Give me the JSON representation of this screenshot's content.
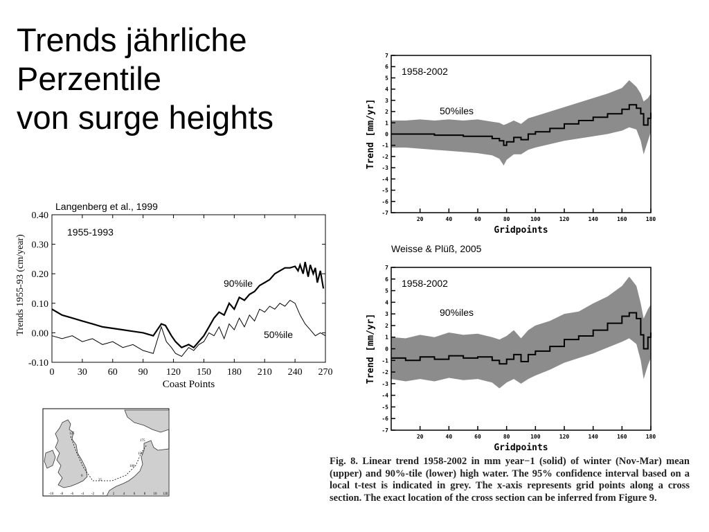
{
  "title": {
    "line1": "Trends jährliche",
    "line2": "Perzentile",
    "line3": "von surge heights"
  },
  "labels": {
    "langenberg": "Langenberg et al., 1999",
    "weisse": "Weisse & Plüß, 2005"
  },
  "caption": {
    "text": "Fig. 8. Linear trend 1958-2002 in mm year−1 (solid) of winter (Nov-Mar) mean (upper) and 90%-tile (lower) high water. The 95% confidence interval based on a local t-test is indicated in grey. The x-axis represents grid points along a cross section. The exact location of the cross section can be inferred from Figure 9."
  },
  "map": {
    "land_color": "#cfcfcf",
    "sea_color": "#ffffff",
    "tick_labels": [
      "-10",
      "-8",
      "-6",
      "-4",
      "-2",
      "0",
      "2",
      "4",
      "6",
      "8",
      "10",
      "12E"
    ],
    "point_labels": [
      "125",
      "175",
      "150",
      "100",
      "25",
      "0"
    ]
  },
  "chart_data": [
    {
      "type": "line",
      "title": "",
      "period_label": "1955-1993",
      "xlabel": "Coast Points",
      "ylabel": "Trends 1955-93 (cm/year)",
      "xlim": [
        0,
        270
      ],
      "ylim": [
        -0.1,
        0.4
      ],
      "xticks": [
        "0",
        "30",
        "60",
        "90",
        "120",
        "150",
        "180",
        "210",
        "240",
        "270"
      ],
      "yticks": [
        "-0.10",
        "0.00",
        "0.10",
        "0.20",
        "0.30",
        "0.40"
      ],
      "grid": false,
      "series": [
        {
          "name": "90%ile",
          "color": "#000000",
          "x": [
            0,
            10,
            20,
            30,
            40,
            50,
            60,
            70,
            80,
            90,
            100,
            108,
            112,
            118,
            122,
            128,
            135,
            140,
            145,
            150,
            155,
            160,
            165,
            170,
            175,
            180,
            185,
            190,
            195,
            200,
            205,
            210,
            215,
            220,
            225,
            230,
            235,
            240,
            243,
            245,
            248,
            250,
            253,
            255,
            258,
            260,
            262,
            265,
            268
          ],
          "y": [
            0.08,
            0.06,
            0.05,
            0.04,
            0.03,
            0.02,
            0.015,
            0.01,
            0.005,
            0.0,
            -0.01,
            0.03,
            0.025,
            -0.01,
            -0.03,
            -0.05,
            -0.04,
            -0.05,
            -0.03,
            -0.01,
            0.02,
            0.05,
            0.07,
            0.06,
            0.1,
            0.08,
            0.12,
            0.11,
            0.13,
            0.14,
            0.16,
            0.17,
            0.18,
            0.2,
            0.21,
            0.22,
            0.22,
            0.225,
            0.21,
            0.23,
            0.2,
            0.24,
            0.19,
            0.23,
            0.2,
            0.22,
            0.17,
            0.21,
            0.15
          ]
        },
        {
          "name": "50%ile",
          "color": "#000000",
          "x": [
            0,
            10,
            20,
            30,
            40,
            50,
            60,
            70,
            80,
            90,
            100,
            108,
            113,
            118,
            122,
            128,
            135,
            140,
            145,
            150,
            155,
            160,
            165,
            170,
            175,
            180,
            185,
            190,
            195,
            200,
            205,
            210,
            215,
            220,
            225,
            230,
            235,
            240,
            245,
            250,
            255,
            260,
            265,
            270
          ],
          "y": [
            -0.01,
            -0.02,
            -0.01,
            -0.03,
            -0.02,
            -0.04,
            -0.03,
            -0.05,
            -0.04,
            -0.06,
            -0.07,
            0.02,
            -0.03,
            -0.05,
            -0.07,
            -0.08,
            -0.05,
            -0.06,
            -0.04,
            -0.03,
            0.0,
            -0.01,
            0.02,
            -0.02,
            0.03,
            0.01,
            0.05,
            0.02,
            0.06,
            0.04,
            0.08,
            0.07,
            0.09,
            0.08,
            0.1,
            0.09,
            0.11,
            0.1,
            0.06,
            0.03,
            0.01,
            -0.01,
            0.0,
            -0.01
          ]
        }
      ]
    },
    {
      "type": "area",
      "title": "",
      "period_label": "1958-2002",
      "series_label": "50%iles",
      "xlabel": "Gridpoints",
      "ylabel": "Trend [mm/yr]",
      "xlim": [
        0,
        180
      ],
      "ylim": [
        -7,
        7
      ],
      "xticks": [
        "20",
        "40",
        "60",
        "80",
        "100",
        "120",
        "140",
        "160",
        "180"
      ],
      "yticks": [
        "-7",
        "-6",
        "-5",
        "-4",
        "-3",
        "-2",
        "-1",
        "0",
        "1",
        "2",
        "3",
        "4",
        "5",
        "6",
        "7"
      ],
      "band_color": "#8c8c8c",
      "grid": false,
      "x": [
        0,
        10,
        20,
        30,
        40,
        50,
        60,
        70,
        75,
        78,
        80,
        85,
        90,
        95,
        100,
        110,
        120,
        130,
        140,
        150,
        160,
        165,
        170,
        173,
        175,
        178,
        180
      ],
      "trend": [
        0.0,
        0.0,
        0.0,
        -0.1,
        -0.1,
        -0.2,
        -0.2,
        -0.4,
        -0.6,
        -1.0,
        -0.7,
        -0.3,
        -0.5,
        0.0,
        0.2,
        0.5,
        0.9,
        1.2,
        1.5,
        1.8,
        2.2,
        2.6,
        2.3,
        1.8,
        0.8,
        1.4,
        1.9
      ],
      "lower": [
        -1.2,
        -1.2,
        -1.3,
        -1.4,
        -1.5,
        -1.6,
        -1.7,
        -1.9,
        -2.2,
        -2.8,
        -2.3,
        -1.8,
        -1.8,
        -1.4,
        -1.2,
        -0.9,
        -0.6,
        -0.4,
        -0.2,
        0.0,
        0.3,
        0.6,
        0.4,
        -0.6,
        -1.8,
        -0.6,
        0.2
      ],
      "upper": [
        1.2,
        1.2,
        1.3,
        1.2,
        1.3,
        1.2,
        1.3,
        1.1,
        1.0,
        0.8,
        0.9,
        1.2,
        0.9,
        1.4,
        1.6,
        2.0,
        2.4,
        2.8,
        3.2,
        3.6,
        4.1,
        4.8,
        4.2,
        3.6,
        2.9,
        3.2,
        3.6
      ]
    },
    {
      "type": "area",
      "title": "",
      "period_label": "1958-2002",
      "series_label": "90%iles",
      "xlabel": "Gridpoints",
      "ylabel": "Trend [mm/yr]",
      "xlim": [
        0,
        180
      ],
      "ylim": [
        -7,
        7
      ],
      "xticks": [
        "20",
        "40",
        "60",
        "80",
        "100",
        "120",
        "140",
        "160",
        "180"
      ],
      "yticks": [
        "-7",
        "-6",
        "-5",
        "-4",
        "-3",
        "-2",
        "-1",
        "0",
        "1",
        "2",
        "3",
        "4",
        "5",
        "6",
        "7"
      ],
      "band_color": "#8c8c8c",
      "grid": false,
      "x": [
        0,
        10,
        20,
        30,
        40,
        50,
        60,
        70,
        75,
        80,
        85,
        90,
        95,
        100,
        110,
        120,
        130,
        140,
        150,
        160,
        165,
        170,
        173,
        175,
        178,
        180
      ],
      "trend": [
        -0.8,
        -1.0,
        -0.7,
        -0.9,
        -0.6,
        -0.8,
        -0.7,
        -1.0,
        -1.3,
        -0.9,
        -0.5,
        -1.1,
        -0.5,
        -0.2,
        0.2,
        0.8,
        1.1,
        1.6,
        2.2,
        2.8,
        3.1,
        2.6,
        1.2,
        0.0,
        1.0,
        1.4
      ],
      "lower": [
        -2.6,
        -2.8,
        -2.6,
        -2.8,
        -2.5,
        -2.7,
        -2.6,
        -2.9,
        -3.4,
        -2.9,
        -2.6,
        -3.0,
        -2.6,
        -2.3,
        -1.8,
        -1.2,
        -0.8,
        -0.4,
        0.1,
        0.6,
        0.9,
        0.4,
        -1.0,
        -2.6,
        -1.4,
        -0.8
      ],
      "upper": [
        1.0,
        0.9,
        1.2,
        1.0,
        1.4,
        1.2,
        1.3,
        1.0,
        0.8,
        1.1,
        1.6,
        0.9,
        1.6,
        2.0,
        2.4,
        3.0,
        3.2,
        3.9,
        4.5,
        5.4,
        6.2,
        5.4,
        3.9,
        2.6,
        3.4,
        3.8
      ]
    }
  ]
}
